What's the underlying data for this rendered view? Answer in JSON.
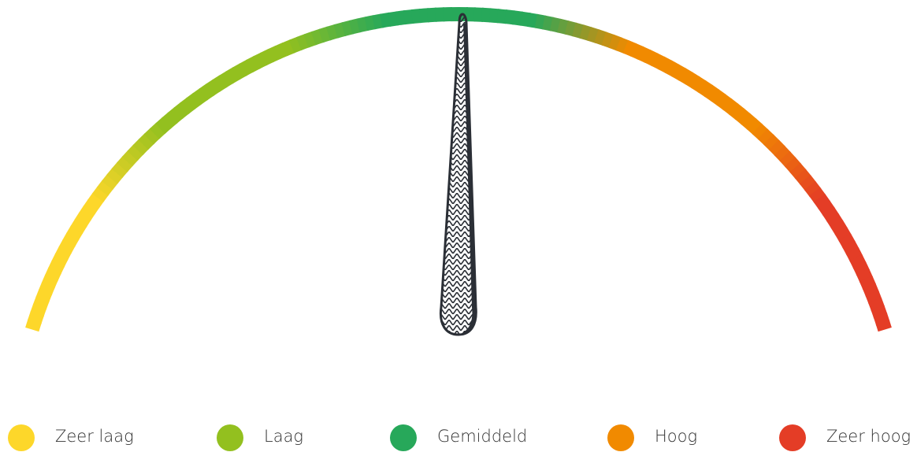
{
  "legend": [
    {
      "label": "Zeer laag",
      "color": "#fdd72a"
    },
    {
      "label": "Laag",
      "color": "#93c01f"
    },
    {
      "label": "Gemiddeld",
      "color": "#27a85a"
    },
    {
      "label": "Hoog",
      "color": "#f18a00"
    },
    {
      "label": "Zeer hoog",
      "color": "#e43d26"
    }
  ]
}
